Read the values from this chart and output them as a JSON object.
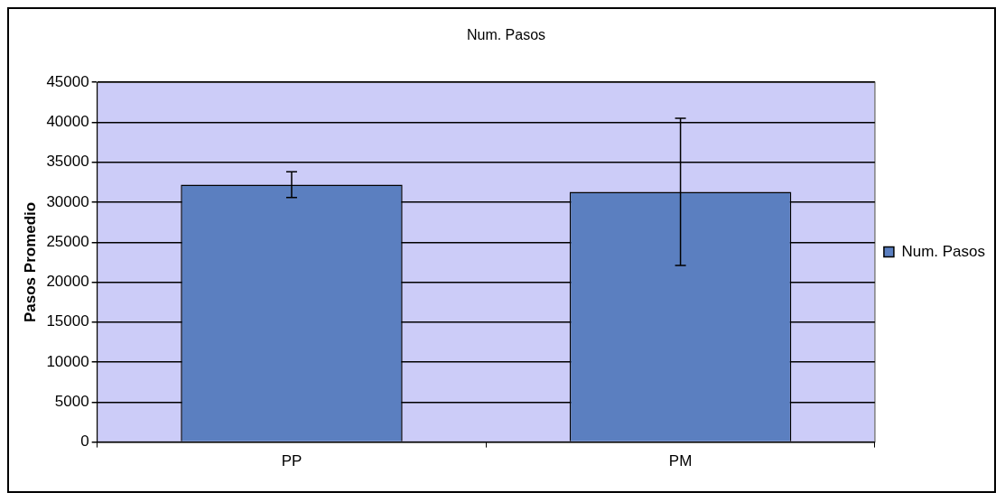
{
  "chart_data": {
    "type": "bar",
    "title": "Num. Pasos",
    "ylabel": "Pasos Promedio",
    "categories": [
      "PP",
      "PM"
    ],
    "series": [
      {
        "name": "Num. Pasos",
        "color": "#5b7fc0",
        "values": [
          32200,
          31300
        ],
        "errors": [
          1600,
          9200
        ]
      }
    ],
    "ylim": [
      0,
      45000
    ],
    "yticks": [
      0,
      5000,
      10000,
      15000,
      20000,
      25000,
      30000,
      35000,
      40000,
      45000
    ],
    "grid": "y",
    "legend": "right"
  }
}
